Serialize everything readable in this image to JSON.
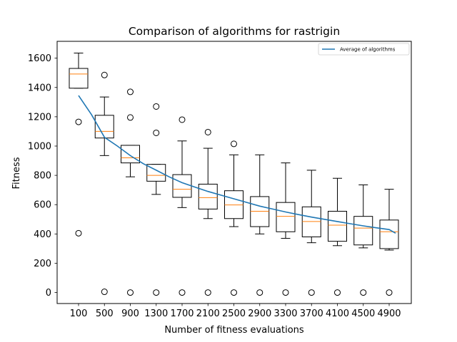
{
  "chart_data": {
    "type": "boxplot",
    "title": "Comparison of algorithms for rastrigin",
    "xlabel": "Number of fitness evaluations",
    "ylabel": "Fitness",
    "ylim": [
      -75,
      1715
    ],
    "yticks": [
      0,
      200,
      400,
      600,
      800,
      1000,
      1200,
      1400,
      1600
    ],
    "categories": [
      "100",
      "500",
      "900",
      "1300",
      "1700",
      "2100",
      "2500",
      "2900",
      "3300",
      "3700",
      "4100",
      "4500",
      "4900"
    ],
    "boxes": [
      {
        "whislo": 1395,
        "q1": 1395,
        "med": 1492,
        "q3": 1530,
        "whishi": 1635,
        "fliers": [
          1165,
          405
        ]
      },
      {
        "whislo": 935,
        "q1": 1055,
        "med": 1100,
        "q3": 1210,
        "whishi": 1335,
        "fliers": [
          1485,
          5
        ]
      },
      {
        "whislo": 790,
        "q1": 885,
        "med": 920,
        "q3": 1005,
        "whishi": 1005,
        "fliers": [
          1370,
          1195,
          0
        ]
      },
      {
        "whislo": 670,
        "q1": 760,
        "med": 800,
        "q3": 875,
        "whishi": 875,
        "fliers": [
          1270,
          1090,
          0
        ]
      },
      {
        "whislo": 580,
        "q1": 650,
        "med": 705,
        "q3": 805,
        "whishi": 1035,
        "fliers": [
          1180,
          0
        ]
      },
      {
        "whislo": 505,
        "q1": 570,
        "med": 648,
        "q3": 740,
        "whishi": 985,
        "fliers": [
          1095,
          0
        ]
      },
      {
        "whislo": 450,
        "q1": 505,
        "med": 598,
        "q3": 695,
        "whishi": 940,
        "fliers": [
          1015,
          0
        ]
      },
      {
        "whislo": 400,
        "q1": 450,
        "med": 555,
        "q3": 655,
        "whishi": 940,
        "fliers": [
          0
        ]
      },
      {
        "whislo": 370,
        "q1": 415,
        "med": 520,
        "q3": 615,
        "whishi": 885,
        "fliers": [
          0
        ]
      },
      {
        "whislo": 340,
        "q1": 380,
        "med": 485,
        "q3": 585,
        "whishi": 835,
        "fliers": [
          0
        ]
      },
      {
        "whislo": 320,
        "q1": 350,
        "med": 460,
        "q3": 555,
        "whishi": 780,
        "fliers": [
          0
        ]
      },
      {
        "whislo": 305,
        "q1": 325,
        "med": 440,
        "q3": 520,
        "whishi": 735,
        "fliers": [
          0
        ]
      },
      {
        "whislo": 290,
        "q1": 300,
        "med": 415,
        "q3": 495,
        "whishi": 705,
        "fliers": [
          0
        ]
      }
    ],
    "series": [
      {
        "name": "Average of algorithms",
        "type": "line",
        "color": "#1f77b4",
        "x": [
          100,
          300,
          500,
          700,
          900,
          1100,
          1300,
          1500,
          1700,
          1900,
          2100,
          2300,
          2500,
          2700,
          2900,
          3100,
          3300,
          3500,
          3700,
          3900,
          4100,
          4300,
          4500,
          4700,
          4900,
          5000
        ],
        "values": [
          1345,
          1215,
          1060,
          1000,
          935,
          880,
          835,
          790,
          750,
          720,
          690,
          665,
          640,
          615,
          590,
          570,
          550,
          532,
          515,
          500,
          485,
          470,
          455,
          442,
          430,
          405
        ]
      }
    ],
    "legend_position": "upper right",
    "grid": false,
    "box_color": "#000000",
    "median_color": "#ff7f0e"
  }
}
